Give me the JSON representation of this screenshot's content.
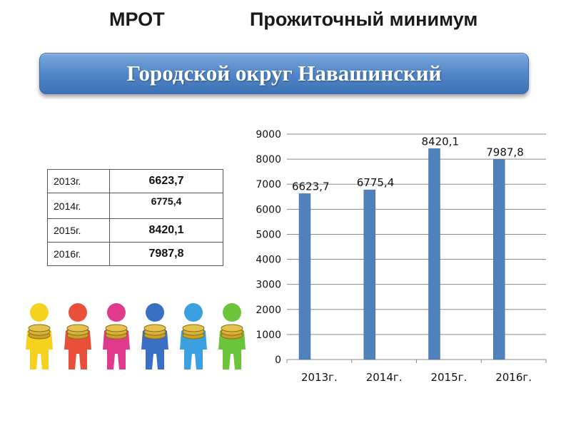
{
  "header": {
    "left": "МРОТ",
    "right": "Прожиточный минимум"
  },
  "banner": {
    "title": "Городской округ Навашинский"
  },
  "table": {
    "rows": [
      {
        "year": "2013г.",
        "value": "6623,7"
      },
      {
        "year": "2014г.",
        "value": "6775,4"
      },
      {
        "year": "2015г.",
        "value": "8420,1"
      },
      {
        "year": "2016г.",
        "value": "7987,8"
      }
    ]
  },
  "chart_data": {
    "type": "bar",
    "categories": [
      "2013г.",
      "2014г.",
      "2015г.",
      "2016г."
    ],
    "values": [
      6623.7,
      6775.4,
      8420.1,
      7987.8
    ],
    "data_labels": [
      "6623,7",
      "6775,4",
      "8420,1",
      "7987,8"
    ],
    "ylim": [
      0,
      9000
    ],
    "yticks": [
      0,
      1000,
      2000,
      3000,
      4000,
      5000,
      6000,
      7000,
      8000,
      9000
    ],
    "grid": true,
    "bar_color": "#4f81bd",
    "title": "",
    "xlabel": "",
    "ylabel": ""
  },
  "decoration": {
    "figure_colors": [
      "#f4d21f",
      "#e8503a",
      "#e03a8c",
      "#3a6fc4",
      "#3aa0e0",
      "#6cc43a"
    ]
  }
}
